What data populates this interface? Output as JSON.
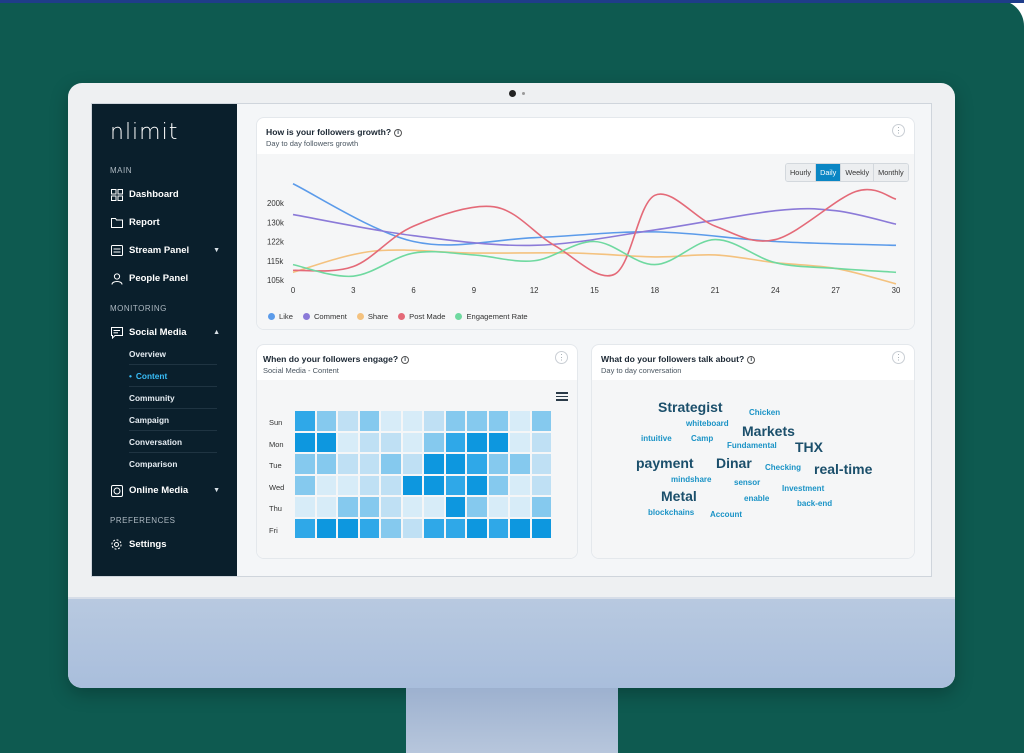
{
  "app": {
    "logo_text": "nlimit"
  },
  "sidebar": {
    "sections": {
      "main": "MAIN",
      "monitoring": "MONITORING",
      "preferences": "PREFERENCES"
    },
    "items": [
      {
        "label": "Dashboard",
        "icon": "grid-icon"
      },
      {
        "label": "Report",
        "icon": "folder-icon"
      },
      {
        "label": "Stream Panel",
        "icon": "stream-icon"
      },
      {
        "label": "People Panel",
        "icon": "person-icon"
      },
      {
        "label": "Social Media",
        "icon": "chat-icon"
      },
      {
        "label": "Online Media",
        "icon": "globe-icon"
      },
      {
        "label": "Settings",
        "icon": "gear-icon"
      }
    ],
    "social_sub": [
      "Overview",
      "Content",
      "Community",
      "Campaign",
      "Conversation",
      "Comparison"
    ],
    "active_sub": "Content"
  },
  "growth": {
    "title": "How is your followers growth?",
    "subtitle": "Day to day followers growth",
    "tabs": [
      "Hourly",
      "Daily",
      "Weekly",
      "Monthly"
    ],
    "active_tab": "Daily"
  },
  "chart_data": {
    "type": "line",
    "x_ticks": [
      0,
      3,
      6,
      9,
      12,
      15,
      18,
      21,
      24,
      27,
      30
    ],
    "y_ticks": [
      "105k",
      "115k",
      "122k",
      "130k",
      "200k"
    ],
    "series": [
      {
        "name": "Like",
        "color": "#5b9bea",
        "values": [
          [
            0,
            5.0
          ],
          [
            6,
            2.0
          ],
          [
            12,
            2.2
          ],
          [
            18,
            2.5
          ],
          [
            24,
            2.0
          ],
          [
            30,
            1.8
          ]
        ]
      },
      {
        "name": "Comment",
        "color": "#8b7ad8",
        "values": [
          [
            0,
            3.4
          ],
          [
            6,
            2.3
          ],
          [
            12,
            1.8
          ],
          [
            18,
            2.6
          ],
          [
            24,
            3.6
          ],
          [
            27,
            3.6
          ],
          [
            30,
            2.9
          ]
        ]
      },
      {
        "name": "Share",
        "color": "#f4c27f",
        "values": [
          [
            0,
            0.4
          ],
          [
            4,
            1.5
          ],
          [
            9,
            1.4
          ],
          [
            14,
            1.4
          ],
          [
            18,
            1.2
          ],
          [
            21,
            1.3
          ],
          [
            24,
            0.9
          ],
          [
            27,
            0.6
          ],
          [
            30,
            -0.2
          ]
        ]
      },
      {
        "name": "Post Made",
        "color": "#e46a78",
        "values": [
          [
            0,
            0.5
          ],
          [
            3,
            0.7
          ],
          [
            6,
            2.8
          ],
          [
            10,
            3.8
          ],
          [
            13,
            1.8
          ],
          [
            16,
            0.3
          ],
          [
            18,
            4.4
          ],
          [
            21,
            2.8
          ],
          [
            24,
            2.1
          ],
          [
            28,
            4.6
          ],
          [
            30,
            4.2
          ]
        ]
      },
      {
        "name": "Engagement Rate",
        "color": "#6fd9a0",
        "values": [
          [
            0,
            0.8
          ],
          [
            3,
            0.2
          ],
          [
            6,
            1.4
          ],
          [
            9,
            1.3
          ],
          [
            12,
            1.0
          ],
          [
            15,
            2.0
          ],
          [
            18,
            0.8
          ],
          [
            21,
            2.1
          ],
          [
            24,
            0.9
          ],
          [
            27,
            0.6
          ],
          [
            30,
            0.4
          ]
        ]
      }
    ]
  },
  "engage": {
    "title": "When do your followers engage?",
    "subtitle": "Social Media - Content",
    "days": [
      "Sun",
      "Mon",
      "Tue",
      "Wed",
      "Thu",
      "Fri"
    ],
    "grid": [
      [
        4,
        3,
        2,
        3,
        1,
        1,
        2,
        3,
        3,
        3,
        1,
        3
      ],
      [
        5,
        5,
        1,
        2,
        2,
        1,
        3,
        4,
        5,
        5,
        1,
        2
      ],
      [
        3,
        3,
        2,
        2,
        3,
        2,
        5,
        5,
        4,
        3,
        3,
        2
      ],
      [
        3,
        1,
        1,
        2,
        2,
        5,
        5,
        4,
        5,
        3,
        1,
        2
      ],
      [
        1,
        1,
        3,
        3,
        2,
        1,
        1,
        5,
        3,
        1,
        1,
        3
      ],
      [
        4,
        5,
        5,
        4,
        3,
        2,
        4,
        4,
        5,
        4,
        5,
        5
      ]
    ],
    "colors": [
      "#f0f2f4",
      "#d7ecf8",
      "#bfe0f4",
      "#85c9ee",
      "#2fa8e8",
      "#0d97df"
    ]
  },
  "talk": {
    "title": "What do your followers talk about?",
    "subtitle": "Day to day conversation",
    "words": [
      {
        "text": "Strategist",
        "size": 14,
        "color": "#1b4f6b"
      },
      {
        "text": "Chicken",
        "size": 8,
        "color": "#1a93c6"
      },
      {
        "text": "whiteboard",
        "size": 8,
        "color": "#1a93c6"
      },
      {
        "text": "Markets",
        "size": 14,
        "color": "#1b4f6b"
      },
      {
        "text": "intuitive",
        "size": 8,
        "color": "#1a93c6"
      },
      {
        "text": "Camp",
        "size": 8,
        "color": "#1a93c6"
      },
      {
        "text": "Fundamental",
        "size": 8,
        "color": "#1a93c6"
      },
      {
        "text": "THX",
        "size": 14,
        "color": "#1b4f6b"
      },
      {
        "text": "payment",
        "size": 14,
        "color": "#1b4f6b"
      },
      {
        "text": "Dinar",
        "size": 14,
        "color": "#1b4f6b"
      },
      {
        "text": "Checking",
        "size": 8,
        "color": "#1a93c6"
      },
      {
        "text": "real-time",
        "size": 14,
        "color": "#1b4f6b"
      },
      {
        "text": "mindshare",
        "size": 8,
        "color": "#1a93c6"
      },
      {
        "text": "sensor",
        "size": 8,
        "color": "#1a93c6"
      },
      {
        "text": "Investment",
        "size": 8,
        "color": "#1a93c6"
      },
      {
        "text": "Metal",
        "size": 14,
        "color": "#1b4f6b"
      },
      {
        "text": "enable",
        "size": 8,
        "color": "#1a93c6"
      },
      {
        "text": "back-end",
        "size": 8,
        "color": "#1a93c6"
      },
      {
        "text": "blockchains",
        "size": 8,
        "color": "#1a93c6"
      },
      {
        "text": "Account",
        "size": 8,
        "color": "#1a93c6"
      }
    ]
  }
}
